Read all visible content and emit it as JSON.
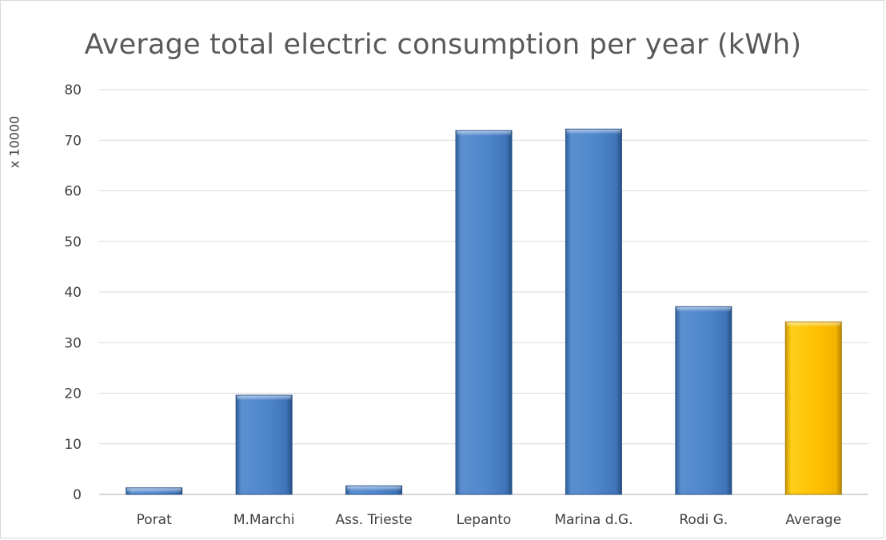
{
  "chart_data": {
    "type": "bar",
    "title": "Average total electric consumption per year (kWh)",
    "ylabel": "x 10000",
    "xlabel": "",
    "categories": [
      "Porat",
      "M.Marchi",
      "Ass. Trieste",
      "Lepanto",
      "Marina d.G.",
      "Rodi G.",
      "Average"
    ],
    "values": [
      1.3,
      19.6,
      1.7,
      71.9,
      72.2,
      37.1,
      34.1
    ],
    "ylim": [
      0,
      80
    ],
    "yticks": [
      "0",
      "10",
      "20",
      "30",
      "40",
      "50",
      "60",
      "70",
      "80"
    ],
    "grid": true,
    "colors": {
      "bar": "#4f81bd",
      "highlight": "#ffc000",
      "highlight_index": 6,
      "grid": "#d9d9d9"
    }
  }
}
